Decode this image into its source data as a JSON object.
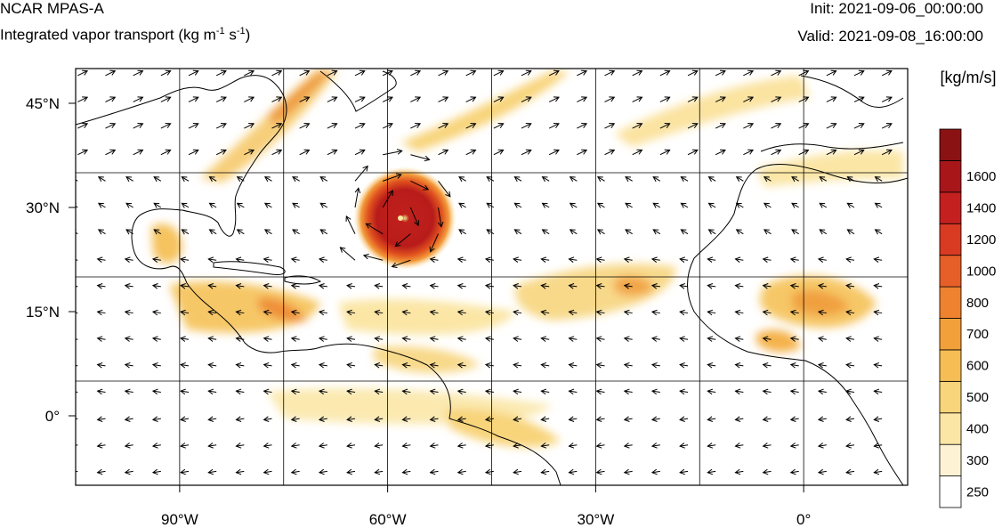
{
  "header": {
    "title": "NCAR MPAS-A",
    "subtitle_main": "Integrated vapor transport (kg m",
    "subtitle_exp1": "-1",
    "subtitle_mid": " s",
    "subtitle_exp2": "-1",
    "subtitle_end": ")",
    "init_label": "Init: 2021-09-06_00:00:00",
    "valid_label": "Valid: 2021-09-08_16:00:00"
  },
  "map": {
    "lon_range": [
      -105,
      15
    ],
    "lat_range": [
      -10,
      50
    ],
    "lon_ticks": [
      {
        "value": -90,
        "label": "90°W"
      },
      {
        "value": -60,
        "label": "60°W"
      },
      {
        "value": -30,
        "label": "30°W"
      },
      {
        "value": 0,
        "label": "0°"
      }
    ],
    "lat_ticks": [
      {
        "value": 45,
        "label": "45°N"
      },
      {
        "value": 30,
        "label": "30°N"
      },
      {
        "value": 15,
        "label": "15°N"
      },
      {
        "value": 0,
        "label": "0°"
      }
    ],
    "grid_lon_step": 15,
    "grid_lat_step": 15,
    "hurricane_center": {
      "lon": -59,
      "lat": 29
    }
  },
  "colorbar": {
    "unit_label": "[kg/m/s]",
    "levels": [
      "250",
      "300",
      "400",
      "500",
      "600",
      "700",
      "800",
      "1000",
      "1200",
      "1400",
      "1600"
    ],
    "colors": [
      "#ffffff",
      "#fdf3d4",
      "#fbe6a6",
      "#f8d47a",
      "#f5bd54",
      "#f2a03a",
      "#ee822f",
      "#e65f28",
      "#d93a22",
      "#c42020",
      "#a8161a",
      "#8a1212"
    ]
  }
}
